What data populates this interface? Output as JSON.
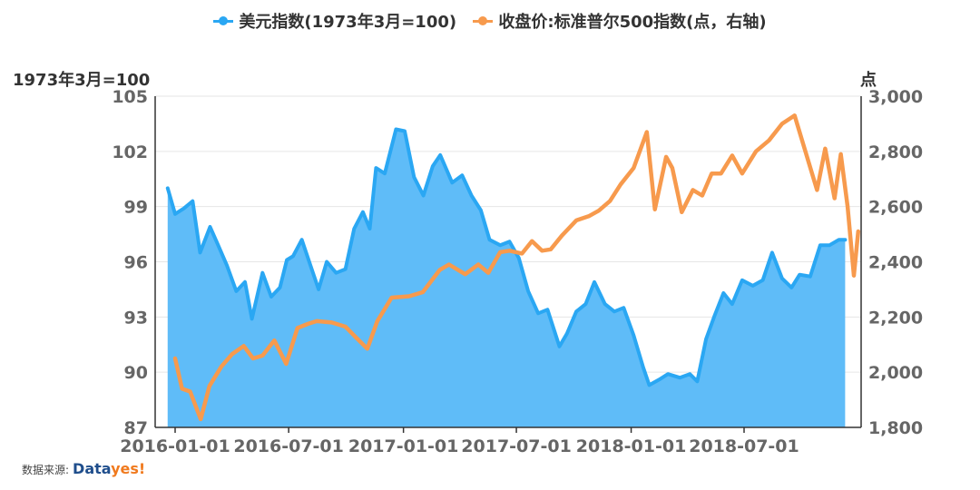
{
  "legend": {
    "series1_label": "美元指数(1973年3月=100)",
    "series2_label": "收盘价:标准普尔500指数(点，右轴)"
  },
  "axes": {
    "left_unit": "1973年3月=100",
    "right_unit": "点"
  },
  "source": {
    "prefix": "数据来源:",
    "logo_part1": "Data",
    "logo_part2": "yes!"
  },
  "colors": {
    "usd_line": "#2aa7f3",
    "usd_area": "#5fbcf8",
    "sp500_line": "#f79a4d"
  },
  "chart_data": {
    "type": "line",
    "x_ticks": [
      "2016-01-01",
      "2016-07-01",
      "2017-01-01",
      "2017-07-01",
      "2018-01-01",
      "2018-07-01"
    ],
    "y_left": {
      "ticks": [
        87,
        90,
        93,
        96,
        99,
        102,
        105
      ],
      "range": [
        87,
        105
      ]
    },
    "y_right": {
      "ticks": [
        "1,800",
        "2,000",
        "2,200",
        "2,400",
        "2,600",
        "2,800",
        "3,000"
      ],
      "range": [
        1800,
        3000
      ]
    },
    "grid": true,
    "legend_position": "top",
    "series": [
      {
        "name": "美元指数(1973年3月=100)",
        "axis": "left",
        "style": "area",
        "points": [
          [
            "2015-12-20",
            100.0
          ],
          [
            "2016-01-01",
            98.6
          ],
          [
            "2016-01-15",
            98.9
          ],
          [
            "2016-01-29",
            99.3
          ],
          [
            "2016-02-10",
            96.5
          ],
          [
            "2016-02-26",
            97.9
          ],
          [
            "2016-03-10",
            96.9
          ],
          [
            "2016-03-24",
            95.8
          ],
          [
            "2016-04-08",
            94.4
          ],
          [
            "2016-04-22",
            94.9
          ],
          [
            "2016-05-03",
            92.9
          ],
          [
            "2016-05-20",
            95.4
          ],
          [
            "2016-06-03",
            94.1
          ],
          [
            "2016-06-17",
            94.6
          ],
          [
            "2016-06-28",
            96.1
          ],
          [
            "2016-07-08",
            96.3
          ],
          [
            "2016-07-22",
            97.2
          ],
          [
            "2016-08-05",
            95.8
          ],
          [
            "2016-08-18",
            94.5
          ],
          [
            "2016-08-31",
            96.0
          ],
          [
            "2016-09-15",
            95.4
          ],
          [
            "2016-09-30",
            95.6
          ],
          [
            "2016-10-14",
            97.8
          ],
          [
            "2016-10-28",
            98.7
          ],
          [
            "2016-11-08",
            97.8
          ],
          [
            "2016-11-18",
            101.1
          ],
          [
            "2016-12-02",
            100.8
          ],
          [
            "2016-12-20",
            103.2
          ],
          [
            "2017-01-03",
            103.1
          ],
          [
            "2017-01-18",
            100.6
          ],
          [
            "2017-02-02",
            99.6
          ],
          [
            "2017-02-17",
            101.2
          ],
          [
            "2017-03-01",
            101.8
          ],
          [
            "2017-03-20",
            100.3
          ],
          [
            "2017-04-05",
            100.7
          ],
          [
            "2017-04-20",
            99.6
          ],
          [
            "2017-05-05",
            98.8
          ],
          [
            "2017-05-19",
            97.2
          ],
          [
            "2017-06-05",
            96.9
          ],
          [
            "2017-06-20",
            97.1
          ],
          [
            "2017-07-05",
            96.2
          ],
          [
            "2017-07-20",
            94.4
          ],
          [
            "2017-08-05",
            93.2
          ],
          [
            "2017-08-20",
            93.4
          ],
          [
            "2017-09-08",
            91.4
          ],
          [
            "2017-09-20",
            92.1
          ],
          [
            "2017-10-05",
            93.3
          ],
          [
            "2017-10-20",
            93.7
          ],
          [
            "2017-11-03",
            94.9
          ],
          [
            "2017-11-20",
            93.7
          ],
          [
            "2017-12-05",
            93.3
          ],
          [
            "2017-12-20",
            93.5
          ],
          [
            "2018-01-05",
            92.0
          ],
          [
            "2018-01-20",
            90.3
          ],
          [
            "2018-01-30",
            89.3
          ],
          [
            "2018-02-15",
            89.6
          ],
          [
            "2018-03-01",
            89.9
          ],
          [
            "2018-03-20",
            89.7
          ],
          [
            "2018-04-05",
            89.9
          ],
          [
            "2018-04-17",
            89.5
          ],
          [
            "2018-05-01",
            91.8
          ],
          [
            "2018-05-15",
            93.1
          ],
          [
            "2018-05-29",
            94.3
          ],
          [
            "2018-06-12",
            93.7
          ],
          [
            "2018-06-28",
            95.0
          ],
          [
            "2018-07-15",
            94.7
          ],
          [
            "2018-07-31",
            95.0
          ],
          [
            "2018-08-15",
            96.5
          ],
          [
            "2018-08-31",
            95.1
          ],
          [
            "2018-09-15",
            94.6
          ],
          [
            "2018-09-28",
            95.3
          ],
          [
            "2018-10-15",
            95.2
          ],
          [
            "2018-10-31",
            96.9
          ],
          [
            "2018-11-15",
            96.9
          ],
          [
            "2018-11-30",
            97.2
          ],
          [
            "2018-12-10",
            97.2
          ]
        ]
      },
      {
        "name": "收盘价:标准普尔500指数(点，右轴)",
        "axis": "right",
        "style": "line",
        "points": [
          [
            "2016-01-01",
            2050
          ],
          [
            "2016-01-12",
            1940
          ],
          [
            "2016-01-25",
            1930
          ],
          [
            "2016-02-11",
            1830
          ],
          [
            "2016-02-25",
            1950
          ],
          [
            "2016-03-15",
            2020
          ],
          [
            "2016-04-01",
            2065
          ],
          [
            "2016-04-20",
            2095
          ],
          [
            "2016-05-05",
            2050
          ],
          [
            "2016-05-20",
            2060
          ],
          [
            "2016-06-08",
            2115
          ],
          [
            "2016-06-27",
            2030
          ],
          [
            "2016-07-15",
            2160
          ],
          [
            "2016-08-01",
            2175
          ],
          [
            "2016-08-15",
            2185
          ],
          [
            "2016-09-08",
            2180
          ],
          [
            "2016-09-30",
            2165
          ],
          [
            "2016-10-15",
            2130
          ],
          [
            "2016-11-04",
            2085
          ],
          [
            "2016-11-20",
            2185
          ],
          [
            "2016-12-13",
            2270
          ],
          [
            "2017-01-10",
            2275
          ],
          [
            "2017-02-01",
            2290
          ],
          [
            "2017-02-28",
            2370
          ],
          [
            "2017-03-15",
            2390
          ],
          [
            "2017-04-10",
            2355
          ],
          [
            "2017-05-01",
            2390
          ],
          [
            "2017-05-17",
            2360
          ],
          [
            "2017-06-05",
            2435
          ],
          [
            "2017-06-20",
            2440
          ],
          [
            "2017-07-10",
            2430
          ],
          [
            "2017-07-26",
            2475
          ],
          [
            "2017-08-11",
            2440
          ],
          [
            "2017-08-25",
            2445
          ],
          [
            "2017-09-12",
            2495
          ],
          [
            "2017-10-05",
            2550
          ],
          [
            "2017-10-25",
            2565
          ],
          [
            "2017-11-10",
            2585
          ],
          [
            "2017-11-28",
            2620
          ],
          [
            "2017-12-15",
            2680
          ],
          [
            "2018-01-05",
            2740
          ],
          [
            "2018-01-26",
            2870
          ],
          [
            "2018-02-08",
            2590
          ],
          [
            "2018-02-26",
            2780
          ],
          [
            "2018-03-08",
            2740
          ],
          [
            "2018-03-23",
            2580
          ],
          [
            "2018-04-10",
            2660
          ],
          [
            "2018-04-25",
            2640
          ],
          [
            "2018-05-10",
            2720
          ],
          [
            "2018-05-25",
            2720
          ],
          [
            "2018-06-12",
            2785
          ],
          [
            "2018-06-28",
            2720
          ],
          [
            "2018-07-20",
            2800
          ],
          [
            "2018-08-10",
            2840
          ],
          [
            "2018-08-31",
            2900
          ],
          [
            "2018-09-20",
            2930
          ],
          [
            "2018-10-10",
            2780
          ],
          [
            "2018-10-26",
            2660
          ],
          [
            "2018-11-08",
            2810
          ],
          [
            "2018-11-23",
            2630
          ],
          [
            "2018-12-03",
            2790
          ],
          [
            "2018-12-14",
            2600
          ],
          [
            "2018-12-24",
            2350
          ],
          [
            "2018-12-31",
            2510
          ]
        ]
      }
    ]
  }
}
